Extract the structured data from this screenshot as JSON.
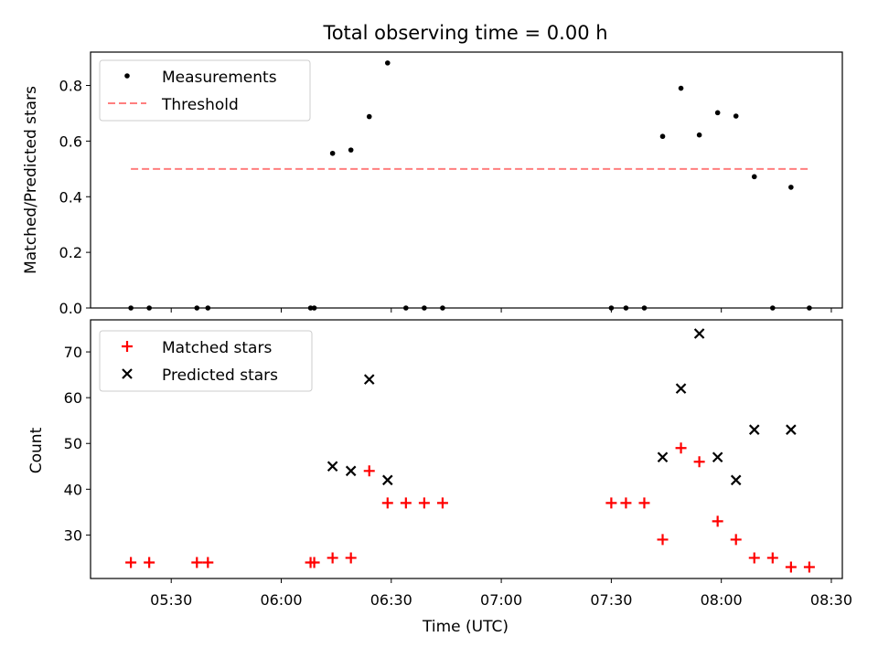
{
  "chart_data": [
    {
      "type": "scatter",
      "title": "Total observing time = 0.00 h",
      "xlabel": "",
      "ylabel": "Matched/Predicted stars",
      "ylim": [
        0,
        0.92
      ],
      "yticks": [
        "0.0",
        "0.2",
        "0.4",
        "0.6",
        "0.8"
      ],
      "legend": {
        "placement": "top-left"
      },
      "series": [
        {
          "name": "Measurements",
          "marker": "dot",
          "color": "#000000",
          "x": [
            "05:19",
            "05:24",
            "05:37",
            "05:40",
            "06:08",
            "06:09",
            "06:14",
            "06:19",
            "06:24",
            "06:29",
            "06:34",
            "06:39",
            "06:44",
            "07:30",
            "07:34",
            "07:39",
            "07:44",
            "07:49",
            "07:54",
            "07:59",
            "08:04",
            "08:09",
            "08:14",
            "08:19",
            "08:24"
          ],
          "y": [
            0,
            0,
            0,
            0,
            0,
            0,
            0.556,
            0.568,
            0.688,
            0.881,
            0,
            0,
            0,
            0,
            0,
            0,
            0.617,
            0.79,
            0.622,
            0.702,
            0.69,
            0.472,
            0,
            0.434,
            0
          ]
        },
        {
          "name": "Threshold",
          "style": "dashed",
          "color": "#ff7f7f",
          "x": [
            "05:19",
            "08:24"
          ],
          "y": [
            0.5,
            0.5
          ]
        }
      ]
    },
    {
      "type": "scatter",
      "title": "",
      "xlabel": "Time (UTC)",
      "ylabel": "Count",
      "ylim": [
        20.5,
        77
      ],
      "yticks": [
        "30",
        "40",
        "50",
        "60",
        "70"
      ],
      "xlim": [
        "05:08",
        "08:33"
      ],
      "xticks": [
        "05:30",
        "06:00",
        "06:30",
        "07:00",
        "07:30",
        "08:00",
        "08:30"
      ],
      "legend": {
        "placement": "top-left"
      },
      "series": [
        {
          "name": "Matched stars",
          "marker": "plus",
          "color": "#ff0000",
          "x": [
            "05:19",
            "05:24",
            "05:37",
            "05:40",
            "06:08",
            "06:09",
            "06:14",
            "06:19",
            "06:24",
            "06:29",
            "06:34",
            "06:39",
            "06:44",
            "07:30",
            "07:34",
            "07:39",
            "07:44",
            "07:49",
            "07:54",
            "07:59",
            "08:04",
            "08:09",
            "08:14",
            "08:19",
            "08:24"
          ],
          "y": [
            24,
            24,
            24,
            24,
            24,
            24,
            25,
            25,
            44,
            37,
            37,
            37,
            37,
            37,
            37,
            37,
            29,
            49,
            46,
            33,
            29,
            25,
            25,
            23,
            23
          ]
        },
        {
          "name": "Predicted stars",
          "marker": "x",
          "color": "#000000",
          "x": [
            "06:14",
            "06:19",
            "06:24",
            "06:29",
            "07:44",
            "07:49",
            "07:54",
            "07:59",
            "08:04",
            "08:09",
            "08:19"
          ],
          "y": [
            45,
            44,
            64,
            42,
            47,
            62,
            74,
            47,
            42,
            53,
            53
          ]
        }
      ]
    }
  ]
}
